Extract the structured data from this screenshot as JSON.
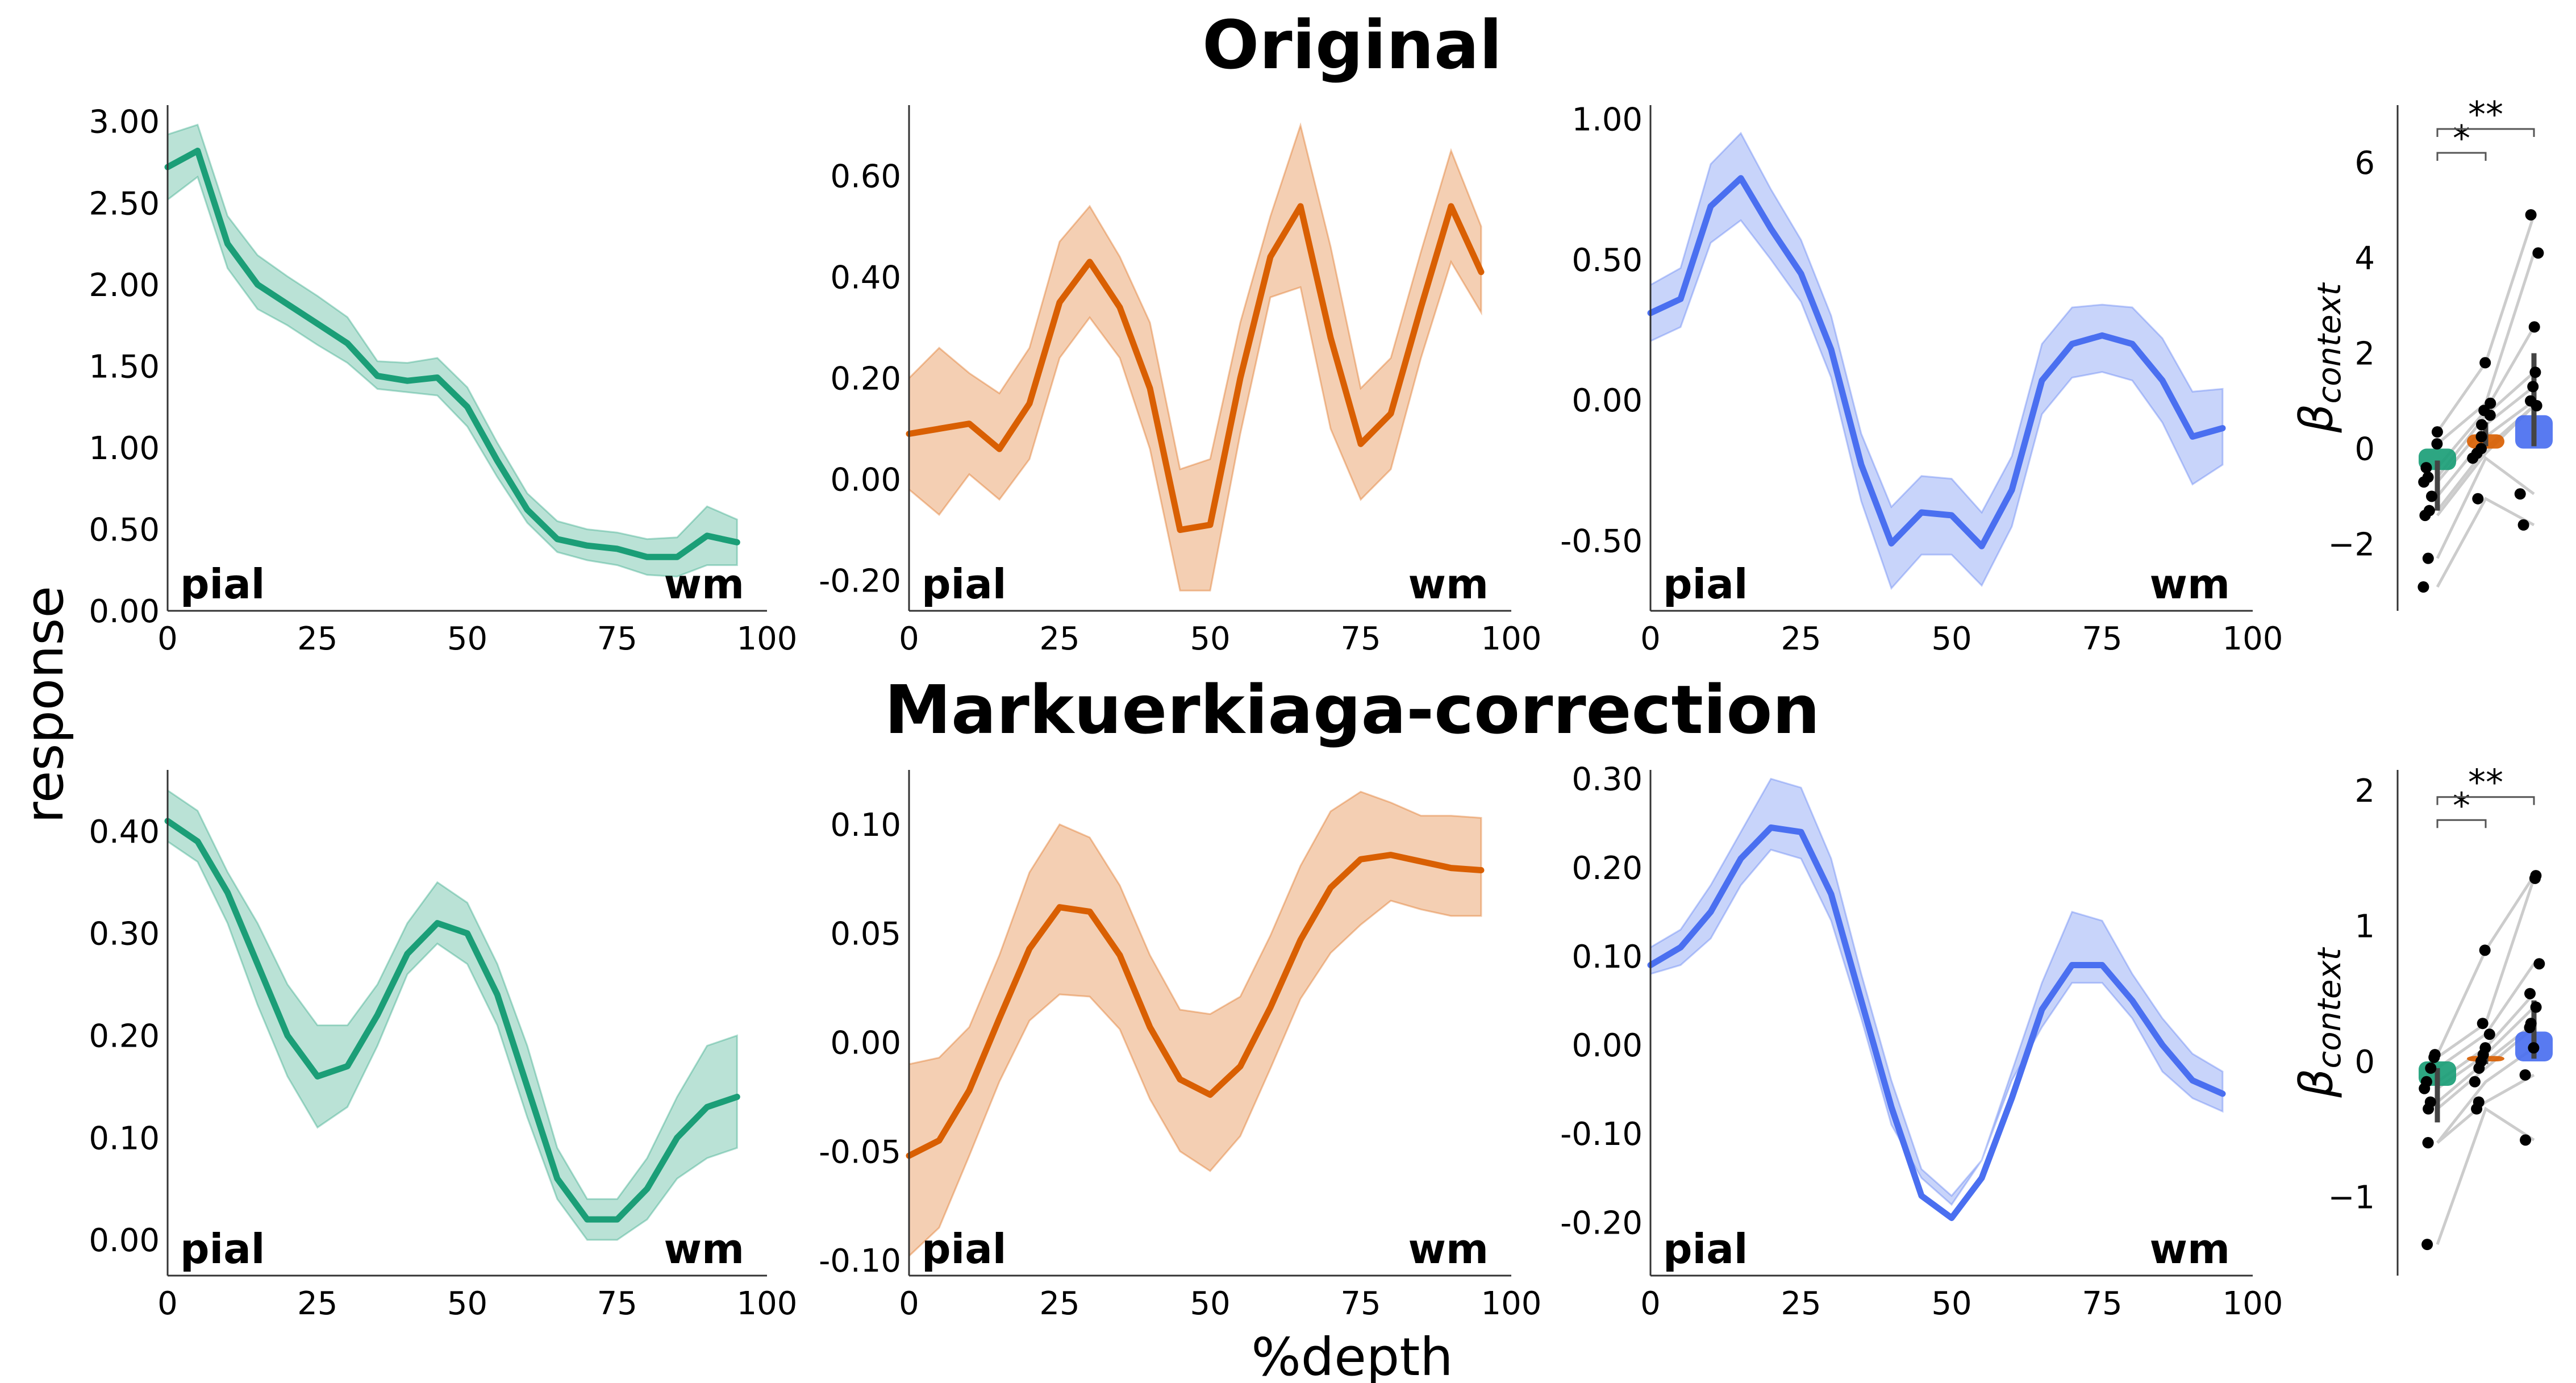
{
  "figure": {
    "row_titles": [
      "Original",
      "Markuerkiaga-correction"
    ],
    "ylabel": "response",
    "xlabel": "%depth",
    "pial_label": "pial",
    "wm_label": "wm",
    "beta_label_main": "β",
    "beta_label_sub": "context",
    "colors": {
      "green": "#1b9e77",
      "orange": "#d95f02",
      "blue": "#4a6ff0"
    }
  },
  "chart_data": [
    {
      "type": "line",
      "row": 0,
      "col": 0,
      "color": "green",
      "x": [
        0,
        5,
        10,
        15,
        20,
        25,
        30,
        35,
        40,
        45,
        50,
        55,
        60,
        65,
        70,
        75,
        80,
        85,
        90,
        95
      ],
      "y": [
        2.72,
        2.82,
        2.25,
        2.0,
        1.88,
        1.76,
        1.64,
        1.44,
        1.41,
        1.43,
        1.25,
        0.92,
        0.62,
        0.44,
        0.4,
        0.38,
        0.33,
        0.33,
        0.46,
        0.42
      ],
      "lower": [
        2.52,
        2.66,
        2.1,
        1.85,
        1.75,
        1.63,
        1.52,
        1.36,
        1.34,
        1.32,
        1.13,
        0.82,
        0.54,
        0.36,
        0.31,
        0.28,
        0.22,
        0.21,
        0.28,
        0.28
      ],
      "upper": [
        2.92,
        2.98,
        2.42,
        2.18,
        2.05,
        1.93,
        1.8,
        1.53,
        1.52,
        1.55,
        1.37,
        1.03,
        0.72,
        0.55,
        0.5,
        0.48,
        0.44,
        0.45,
        0.64,
        0.56
      ],
      "xlim": [
        0,
        100
      ],
      "ylim": [
        0.0,
        3.1
      ],
      "xticks": [
        0,
        25,
        50,
        75,
        100
      ],
      "xtick_labels": [
        "0",
        "25",
        "50",
        "75",
        "100"
      ],
      "yticks": [
        0,
        0.5,
        1,
        1.5,
        2,
        2.5,
        3
      ],
      "ytick_labels": [
        "0.00",
        "0.50",
        "1.00",
        "1.50",
        "2.00",
        "2.50",
        "3.00"
      ]
    },
    {
      "type": "line",
      "row": 0,
      "col": 1,
      "color": "orange",
      "x": [
        0,
        5,
        10,
        15,
        20,
        25,
        30,
        35,
        40,
        45,
        50,
        55,
        60,
        65,
        70,
        75,
        80,
        85,
        90,
        95
      ],
      "y": [
        0.09,
        0.1,
        0.11,
        0.06,
        0.15,
        0.35,
        0.43,
        0.34,
        0.18,
        -0.1,
        -0.09,
        0.2,
        0.44,
        0.54,
        0.28,
        0.07,
        0.13,
        0.34,
        0.54,
        0.41
      ],
      "lower": [
        -0.02,
        -0.07,
        0.01,
        -0.04,
        0.04,
        0.24,
        0.32,
        0.24,
        0.06,
        -0.22,
        -0.22,
        0.09,
        0.36,
        0.38,
        0.1,
        -0.04,
        0.02,
        0.24,
        0.43,
        0.33
      ],
      "upper": [
        0.2,
        0.26,
        0.21,
        0.17,
        0.26,
        0.47,
        0.54,
        0.44,
        0.31,
        0.02,
        0.04,
        0.31,
        0.52,
        0.7,
        0.46,
        0.18,
        0.24,
        0.45,
        0.65,
        0.5
      ],
      "xlim": [
        0,
        100
      ],
      "ylim": [
        -0.26,
        0.74
      ],
      "xticks": [
        0,
        25,
        50,
        75,
        100
      ],
      "xtick_labels": [
        "0",
        "25",
        "50",
        "75",
        "100"
      ],
      "yticks": [
        -0.2,
        0,
        0.2,
        0.4,
        0.6
      ],
      "ytick_labels": [
        "-0.20",
        "0.00",
        "0.20",
        "0.40",
        "0.60"
      ]
    },
    {
      "type": "line",
      "row": 0,
      "col": 2,
      "color": "blue",
      "x": [
        0,
        5,
        10,
        15,
        20,
        25,
        30,
        35,
        40,
        45,
        50,
        55,
        60,
        65,
        70,
        75,
        80,
        85,
        90,
        95
      ],
      "y": [
        0.31,
        0.36,
        0.69,
        0.79,
        0.61,
        0.45,
        0.18,
        -0.23,
        -0.51,
        -0.4,
        -0.41,
        -0.52,
        -0.32,
        0.07,
        0.2,
        0.23,
        0.2,
        0.07,
        -0.13,
        -0.1
      ],
      "lower": [
        0.21,
        0.26,
        0.56,
        0.64,
        0.5,
        0.35,
        0.08,
        -0.36,
        -0.67,
        -0.55,
        -0.55,
        -0.66,
        -0.45,
        -0.05,
        0.08,
        0.1,
        0.07,
        -0.08,
        -0.3,
        -0.23
      ],
      "upper": [
        0.41,
        0.47,
        0.84,
        0.95,
        0.75,
        0.57,
        0.3,
        -0.12,
        -0.38,
        -0.27,
        -0.28,
        -0.4,
        -0.2,
        0.2,
        0.33,
        0.34,
        0.33,
        0.22,
        0.03,
        0.04
      ],
      "xlim": [
        0,
        100
      ],
      "ylim": [
        -0.75,
        1.05
      ],
      "xticks": [
        0,
        25,
        50,
        75,
        100
      ],
      "xtick_labels": [
        "0",
        "25",
        "50",
        "75",
        "100"
      ],
      "yticks": [
        -0.5,
        0,
        0.5,
        1
      ],
      "ytick_labels": [
        "-0.50",
        "0.00",
        "0.50",
        "1.00"
      ]
    },
    {
      "type": "line",
      "row": 1,
      "col": 0,
      "color": "green",
      "x": [
        0,
        5,
        10,
        15,
        20,
        25,
        30,
        35,
        40,
        45,
        50,
        55,
        60,
        65,
        70,
        75,
        80,
        85,
        90,
        95
      ],
      "y": [
        0.41,
        0.39,
        0.34,
        0.27,
        0.2,
        0.16,
        0.17,
        0.22,
        0.28,
        0.31,
        0.3,
        0.24,
        0.15,
        0.06,
        0.02,
        0.02,
        0.05,
        0.1,
        0.13,
        0.14
      ],
      "lower": [
        0.39,
        0.37,
        0.31,
        0.23,
        0.16,
        0.11,
        0.13,
        0.19,
        0.26,
        0.29,
        0.27,
        0.21,
        0.12,
        0.04,
        0.0,
        0.0,
        0.02,
        0.06,
        0.08,
        0.09
      ],
      "upper": [
        0.44,
        0.42,
        0.36,
        0.31,
        0.25,
        0.21,
        0.21,
        0.25,
        0.31,
        0.35,
        0.33,
        0.27,
        0.19,
        0.09,
        0.04,
        0.04,
        0.08,
        0.14,
        0.19,
        0.2
      ],
      "xlim": [
        0,
        100
      ],
      "ylim": [
        -0.035,
        0.46
      ],
      "xticks": [
        0,
        25,
        50,
        75,
        100
      ],
      "xtick_labels": [
        "0",
        "25",
        "50",
        "75",
        "100"
      ],
      "yticks": [
        0,
        0.1,
        0.2,
        0.3,
        0.4
      ],
      "ytick_labels": [
        "0.00",
        "0.10",
        "0.20",
        "0.30",
        "0.40"
      ]
    },
    {
      "type": "line",
      "row": 1,
      "col": 1,
      "color": "orange",
      "x": [
        0,
        5,
        10,
        15,
        20,
        25,
        30,
        35,
        40,
        45,
        50,
        55,
        60,
        65,
        70,
        75,
        80,
        85,
        90,
        95
      ],
      "y": [
        -0.052,
        -0.045,
        -0.022,
        0.011,
        0.043,
        0.062,
        0.06,
        0.04,
        0.007,
        -0.017,
        -0.024,
        -0.011,
        0.016,
        0.047,
        0.071,
        0.084,
        0.086,
        0.083,
        0.08,
        0.079
      ],
      "lower": [
        -0.098,
        -0.085,
        -0.052,
        -0.018,
        0.01,
        0.022,
        0.021,
        0.006,
        -0.026,
        -0.05,
        -0.059,
        -0.043,
        -0.012,
        0.02,
        0.041,
        0.054,
        0.065,
        0.061,
        0.058,
        0.058
      ],
      "upper": [
        -0.01,
        -0.007,
        0.007,
        0.04,
        0.078,
        0.1,
        0.094,
        0.072,
        0.04,
        0.015,
        0.013,
        0.021,
        0.049,
        0.081,
        0.106,
        0.115,
        0.11,
        0.104,
        0.104,
        0.103
      ],
      "xlim": [
        0,
        100
      ],
      "ylim": [
        -0.107,
        0.125
      ],
      "xticks": [
        0,
        25,
        50,
        75,
        100
      ],
      "xtick_labels": [
        "0",
        "25",
        "50",
        "75",
        "100"
      ],
      "yticks": [
        -0.1,
        -0.05,
        0,
        0.05,
        0.1
      ],
      "ytick_labels": [
        "-0.10",
        "-0.05",
        "0.00",
        "0.05",
        "0.10"
      ]
    },
    {
      "type": "line",
      "row": 1,
      "col": 2,
      "color": "blue",
      "x": [
        0,
        5,
        10,
        15,
        20,
        25,
        30,
        35,
        40,
        45,
        50,
        55,
        60,
        65,
        70,
        75,
        80,
        85,
        90,
        95
      ],
      "y": [
        0.09,
        0.11,
        0.15,
        0.21,
        0.245,
        0.24,
        0.17,
        0.05,
        -0.07,
        -0.17,
        -0.195,
        -0.15,
        -0.06,
        0.04,
        0.09,
        0.09,
        0.05,
        0.0,
        -0.04,
        -0.055
      ],
      "lower": [
        0.08,
        0.09,
        0.12,
        0.18,
        0.22,
        0.21,
        0.14,
        0.03,
        -0.09,
        -0.15,
        -0.18,
        -0.13,
        -0.04,
        0.02,
        0.07,
        0.07,
        0.03,
        -0.03,
        -0.06,
        -0.075
      ],
      "upper": [
        0.11,
        0.13,
        0.18,
        0.24,
        0.3,
        0.29,
        0.21,
        0.08,
        -0.04,
        -0.14,
        -0.17,
        -0.13,
        -0.03,
        0.07,
        0.15,
        0.14,
        0.08,
        0.03,
        -0.01,
        -0.03
      ],
      "xlim": [
        0,
        100
      ],
      "ylim": [
        -0.26,
        0.31
      ],
      "xticks": [
        0,
        25,
        50,
        75,
        100
      ],
      "xtick_labels": [
        "0",
        "25",
        "50",
        "75",
        "100"
      ],
      "yticks": [
        -0.2,
        -0.1,
        0,
        0.1,
        0.2,
        0.3
      ],
      "ytick_labels": [
        "-0.20",
        "-0.10",
        "0.00",
        "0.10",
        "0.20",
        "0.30"
      ]
    },
    {
      "type": "bar",
      "row": 0,
      "col": 3,
      "categories": [
        "green",
        "orange",
        "blue"
      ],
      "values": [
        -0.45,
        0.3,
        0.7
      ],
      "errors": [
        [
          -1.3,
          -0.25
        ],
        [
          0.05,
          0.55
        ],
        [
          0.05,
          2.0
        ]
      ],
      "points": [
        [
          0.35,
          0.1,
          -0.4,
          -0.6,
          -0.7,
          -1.0,
          -1.3,
          -1.4,
          -2.3,
          -2.9
        ],
        [
          1.8,
          0.95,
          0.8,
          0.7,
          0.5,
          0.25,
          0.0,
          -0.1,
          -0.2,
          -1.05
        ],
        [
          4.9,
          4.1,
          2.55,
          1.6,
          1.3,
          1.0,
          0.9,
          0.9,
          -0.95,
          -1.6
        ]
      ],
      "ylim": [
        -3.4,
        7.2
      ],
      "yticks": [
        -2,
        0,
        2,
        4,
        6
      ],
      "ytick_labels": [
        "−2",
        "0",
        "2",
        "4",
        "6"
      ],
      "sig": [
        {
          "from": 0,
          "to": 1,
          "label": "*",
          "y": 6.2
        },
        {
          "from": 0,
          "to": 2,
          "label": "**",
          "y": 6.7
        }
      ]
    },
    {
      "type": "bar",
      "row": 1,
      "col": 3,
      "categories": [
        "green",
        "orange",
        "blue"
      ],
      "values": [
        -0.18,
        0.04,
        0.22
      ],
      "errors": [
        [
          -0.45,
          -0.05
        ],
        [
          -0.02,
          0.1
        ],
        [
          0.02,
          0.45
        ]
      ],
      "points": [
        [
          0.05,
          0.03,
          -0.05,
          -0.15,
          -0.2,
          -0.3,
          -0.35,
          -0.6,
          -0.6,
          -1.35
        ],
        [
          0.82,
          0.28,
          0.2,
          0.1,
          0.05,
          0.0,
          -0.05,
          -0.15,
          -0.3,
          -0.35
        ],
        [
          1.37,
          1.35,
          0.72,
          0.5,
          0.4,
          0.28,
          0.25,
          0.1,
          -0.1,
          -0.58
        ]
      ],
      "ylim": [
        -1.58,
        2.15
      ],
      "yticks": [
        -1,
        0,
        1,
        2
      ],
      "ytick_labels": [
        "−1",
        "0",
        "1",
        "2"
      ],
      "sig": [
        {
          "from": 0,
          "to": 1,
          "label": "*",
          "y": 1.78
        },
        {
          "from": 0,
          "to": 2,
          "label": "**",
          "y": 1.95
        }
      ]
    }
  ]
}
